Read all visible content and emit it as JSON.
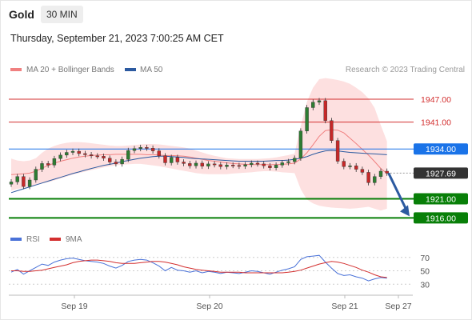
{
  "header": {
    "instrument": "Gold",
    "timeframe": "30 MIN",
    "datetime": "Thursday, September 21, 2023 7:00:25 AM CET"
  },
  "legend": {
    "ma20": "MA 20 + Bollinger Bands",
    "ma50": "MA 50",
    "credit": "Research © 2023 Trading Central",
    "rsi": "RSI",
    "rsi_ma": "9MA"
  },
  "colors": {
    "candle_up": "#2e7d32",
    "candle_down": "#c62828",
    "ma20": "#f08080",
    "ma50": "#2c5aa0",
    "bollinger_fill": "#fde0e0",
    "resistance": "#d32f2f",
    "pivot": "#1a73e8",
    "support": "#087f08",
    "last_price": "#333333",
    "rsi": "#4a72d8",
    "rsi_ma": "#d32f2f",
    "arrow": "#2c5aa0"
  },
  "levels": [
    {
      "label": "1947.00",
      "value": 1947.0,
      "type": "resistance"
    },
    {
      "label": "1941.00",
      "value": 1941.0,
      "type": "resistance"
    },
    {
      "label": "1934.00",
      "value": 1934.0,
      "type": "pivot"
    },
    {
      "label": "1927.69",
      "value": 1927.69,
      "type": "last"
    },
    {
      "label": "1921.00",
      "value": 1921.0,
      "type": "support"
    },
    {
      "label": "1916.00",
      "value": 1916.0,
      "type": "support"
    }
  ],
  "chart_data": {
    "type": "candlestick",
    "x_ticks": [
      "Sep 19",
      "Sep 20",
      "Sep 21",
      "Sep 27"
    ],
    "price": [
      1925.4,
      1926.8,
      1924.2,
      1925.9,
      1928.7,
      1930.2,
      1929.8,
      1931.5,
      1932.4,
      1933.1,
      1933.4,
      1932.8,
      1932.5,
      1932.2,
      1932.1,
      1931.6,
      1930.6,
      1930.1,
      1931.3,
      1933.6,
      1934.1,
      1934.4,
      1934.2,
      1933.5,
      1932.2,
      1930.4,
      1931.8,
      1930.6,
      1930.2,
      1929.6,
      1930.3,
      1929.5,
      1930.1,
      1929.9,
      1929.4,
      1929.8,
      1929.7,
      1929.5,
      1929.9,
      1930.3,
      1930.1,
      1929.6,
      1929.1,
      1929.8,
      1930.4,
      1930.7,
      1931.6,
      1938.7,
      1944.8,
      1946.2,
      1946.6,
      1941.4,
      1936.2,
      1930.8,
      1929.4,
      1929.6,
      1928.7,
      1927.9,
      1925.2,
      1926.8,
      1928.2,
      1927.69
    ],
    "ma20": [
      1927.3,
      1927.4,
      1927.5,
      1927.7,
      1928.2,
      1929.0,
      1929.7,
      1930.3,
      1930.8,
      1931.2,
      1931.6,
      1931.9,
      1932.1,
      1932.3,
      1932.4,
      1932.5,
      1932.5,
      1932.6,
      1932.6,
      1932.6,
      1932.6,
      1932.6,
      1932.5,
      1932.5,
      1932.4,
      1932.3,
      1932.3,
      1932.2,
      1932.1,
      1931.9,
      1931.6,
      1931.3,
      1931.0,
      1930.8,
      1930.6,
      1930.4,
      1930.2,
      1930.1,
      1930.0,
      1929.9,
      1929.9,
      1929.9,
      1929.9,
      1929.9,
      1930.0,
      1930.1,
      1930.3,
      1931.4,
      1933.0,
      1935.1,
      1937.3,
      1938.8,
      1939.0,
      1938.9,
      1938.2,
      1936.8,
      1935.4,
      1933.9,
      1932.4,
      1930.7,
      1928.9,
      1927.6
    ],
    "ma50": [
      1922.6,
      1923.1,
      1923.6,
      1924.1,
      1924.6,
      1925.1,
      1925.6,
      1926.1,
      1926.6,
      1927.1,
      1927.6,
      1928.0,
      1928.5,
      1928.9,
      1929.3,
      1929.7,
      1930.0,
      1930.3,
      1930.7,
      1931.0,
      1931.3,
      1931.6,
      1931.8,
      1932.0,
      1932.1,
      1932.1,
      1932.0,
      1931.9,
      1931.8,
      1931.6,
      1931.5,
      1931.4,
      1931.3,
      1931.2,
      1931.1,
      1931.0,
      1930.9,
      1930.8,
      1930.8,
      1930.8,
      1930.8,
      1930.8,
      1930.9,
      1931.0,
      1931.0,
      1931.1,
      1931.3,
      1931.6,
      1932.0,
      1932.6,
      1933.1,
      1933.5,
      1933.6,
      1933.5,
      1933.3,
      1933.1,
      1933.0,
      1932.9,
      1932.8,
      1932.7,
      1932.6,
      1932.5
    ],
    "bb_upper": [
      1931.5,
      1931.0,
      1930.8,
      1931.0,
      1931.6,
      1933.0,
      1934.1,
      1934.8,
      1935.3,
      1935.6,
      1935.8,
      1935.8,
      1935.7,
      1935.5,
      1935.3,
      1935.1,
      1934.9,
      1934.8,
      1934.8,
      1934.9,
      1935.0,
      1935.2,
      1935.3,
      1935.3,
      1935.2,
      1935.0,
      1934.8,
      1934.6,
      1934.4,
      1934.1,
      1933.6,
      1933.1,
      1932.6,
      1932.2,
      1931.9,
      1931.6,
      1931.5,
      1931.4,
      1931.4,
      1931.4,
      1931.4,
      1931.5,
      1931.6,
      1931.8,
      1932.1,
      1932.4,
      1932.8,
      1940.0,
      1946.3,
      1950.0,
      1952.2,
      1952.5,
      1952.3,
      1952.0,
      1951.6,
      1951.0,
      1950.0,
      1948.8,
      1947.2,
      1944.7,
      1940.2,
      1936.0
    ],
    "bb_lower": [
      1923.1,
      1923.6,
      1923.8,
      1924.0,
      1924.6,
      1925.0,
      1925.3,
      1925.8,
      1926.3,
      1926.8,
      1927.3,
      1927.7,
      1928.1,
      1928.5,
      1928.8,
      1929.2,
      1929.5,
      1929.7,
      1929.9,
      1930.0,
      1930.1,
      1930.1,
      1929.9,
      1929.7,
      1929.5,
      1929.2,
      1928.9,
      1928.6,
      1928.3,
      1928.0,
      1927.7,
      1927.5,
      1927.4,
      1927.4,
      1927.4,
      1927.4,
      1927.6,
      1927.7,
      1927.8,
      1927.9,
      1928.1,
      1928.2,
      1928.2,
      1928.1,
      1927.9,
      1927.8,
      1927.7,
      1923.5,
      1920.8,
      1919.8,
      1919.2,
      1918.9,
      1918.7,
      1918.6,
      1918.5,
      1918.4,
      1918.5,
      1918.7,
      1918.9,
      1918.4,
      1917.9,
      1918.4
    ],
    "rsi": [
      48,
      52,
      45,
      50,
      55,
      60,
      58,
      63,
      66,
      68,
      69,
      67,
      65,
      64,
      63,
      61,
      57,
      54,
      58,
      64,
      66,
      67,
      66,
      62,
      57,
      50,
      55,
      51,
      50,
      48,
      50,
      47,
      49,
      48,
      46,
      48,
      47,
      46,
      48,
      50,
      49,
      47,
      45,
      48,
      51,
      53,
      56,
      67,
      71,
      72,
      73,
      63,
      54,
      46,
      43,
      44,
      41,
      39,
      35,
      38,
      40,
      39
    ],
    "rsi_ma": [
      50,
      50,
      49,
      49,
      50,
      51,
      53,
      55,
      57,
      59,
      62,
      64,
      65,
      66,
      66,
      65,
      64,
      62,
      61,
      61,
      61,
      62,
      63,
      64,
      64,
      63,
      61,
      59,
      56,
      54,
      52,
      51,
      50,
      49,
      48,
      48,
      48,
      48,
      47,
      47,
      47,
      47,
      47,
      47,
      47,
      48,
      49,
      51,
      54,
      57,
      60,
      62,
      64,
      63,
      61,
      58,
      55,
      51,
      48,
      44,
      41,
      40
    ],
    "price_ylim": [
      1914.0,
      1952.0
    ],
    "rsi_ticks": [
      70,
      50,
      30
    ],
    "rsi_ylim": [
      10,
      90
    ]
  }
}
